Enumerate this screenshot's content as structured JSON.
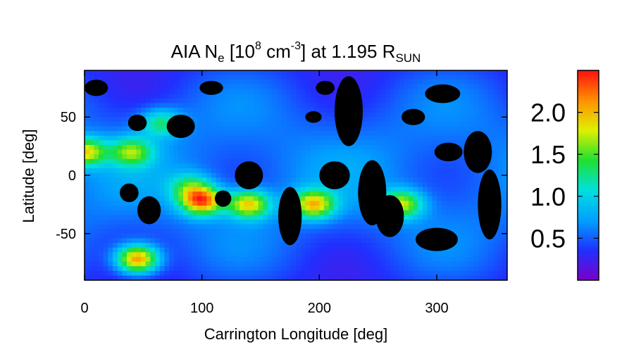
{
  "chart_data": {
    "type": "heatmap",
    "title": {
      "prefix": "AIA N",
      "n_sub": "e",
      "mid": " [10",
      "exp": "8",
      "unit": " cm",
      "unit_exp": "-3",
      "suffix": "] at 1.195 R",
      "r_sub": "SUN"
    },
    "xlabel": "Carrington Longitude [deg]",
    "ylabel": "Latitude [deg]",
    "xlim": [
      0,
      360
    ],
    "ylim": [
      -90,
      90
    ],
    "xticks": [
      0,
      100,
      200,
      300
    ],
    "yticks": [
      -50,
      0,
      50
    ],
    "colorbar": {
      "range": [
        0.0,
        2.5
      ],
      "ticks": [
        "0.5",
        "1.0",
        "1.5",
        "2.0"
      ],
      "colormap": [
        "#7a00c8",
        "#2030ff",
        "#00a0ff",
        "#00e0e0",
        "#20e030",
        "#e0f000",
        "#ff9000",
        "#ff1010"
      ]
    },
    "masked_color": "#000000",
    "hot_spots": [
      {
        "lon": 0,
        "lat": 20,
        "val": 1.9
      },
      {
        "lon": 45,
        "lat": -72,
        "val": 2.4
      },
      {
        "lon": 100,
        "lat": -22,
        "val": 2.3
      },
      {
        "lon": 140,
        "lat": -25,
        "val": 2.0
      },
      {
        "lon": 195,
        "lat": -25,
        "val": 2.0
      },
      {
        "lon": 270,
        "lat": -25,
        "val": 1.8
      },
      {
        "lon": 90,
        "lat": -10,
        "val": 1.3
      },
      {
        "lon": 40,
        "lat": 20,
        "val": 1.6
      },
      {
        "lon": 65,
        "lat": 45,
        "val": 1.4
      }
    ],
    "masked_regions": [
      {
        "lon": 10,
        "lat": 75,
        "rx": 10,
        "ry": 7
      },
      {
        "lon": 108,
        "lat": 75,
        "rx": 10,
        "ry": 6
      },
      {
        "lon": 205,
        "lat": 75,
        "rx": 8,
        "ry": 6
      },
      {
        "lon": 305,
        "lat": 70,
        "rx": 15,
        "ry": 8
      },
      {
        "lon": 45,
        "lat": 45,
        "rx": 8,
        "ry": 7
      },
      {
        "lon": 82,
        "lat": 42,
        "rx": 12,
        "ry": 10
      },
      {
        "lon": 140,
        "lat": 0,
        "rx": 12,
        "ry": 12
      },
      {
        "lon": 38,
        "lat": -15,
        "rx": 8,
        "ry": 8
      },
      {
        "lon": 55,
        "lat": -30,
        "rx": 10,
        "ry": 12
      },
      {
        "lon": 118,
        "lat": -20,
        "rx": 7,
        "ry": 7
      },
      {
        "lon": 175,
        "lat": -35,
        "rx": 10,
        "ry": 25
      },
      {
        "lon": 213,
        "lat": 0,
        "rx": 13,
        "ry": 12
      },
      {
        "lon": 225,
        "lat": 55,
        "rx": 12,
        "ry": 30
      },
      {
        "lon": 245,
        "lat": -15,
        "rx": 12,
        "ry": 28
      },
      {
        "lon": 260,
        "lat": -35,
        "rx": 12,
        "ry": 18
      },
      {
        "lon": 300,
        "lat": -55,
        "rx": 18,
        "ry": 10
      },
      {
        "lon": 335,
        "lat": 20,
        "rx": 12,
        "ry": 18
      },
      {
        "lon": 345,
        "lat": -25,
        "rx": 10,
        "ry": 30
      },
      {
        "lon": 310,
        "lat": 20,
        "rx": 12,
        "ry": 8
      },
      {
        "lon": 195,
        "lat": 50,
        "rx": 7,
        "ry": 5
      },
      {
        "lon": 280,
        "lat": 50,
        "rx": 10,
        "ry": 7
      }
    ]
  }
}
